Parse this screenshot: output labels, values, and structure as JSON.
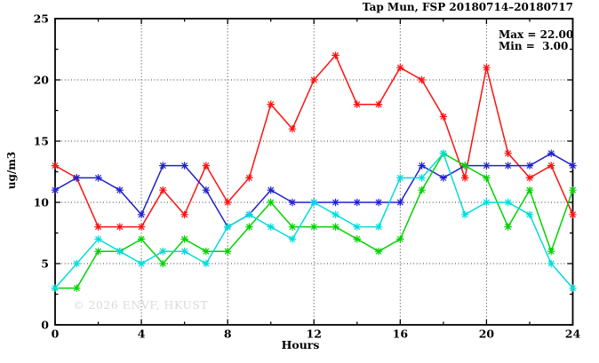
{
  "header": {
    "title": "Tap Mun, FSP 20180714–20180717"
  },
  "legend": {
    "max_label": "Max = 22.00",
    "min_label": "Min =  3.00"
  },
  "watermark": "© 2026 ENVF, HKUST",
  "chart_data": {
    "type": "line",
    "title": "Tap Mun, FSP 20180714–20180717",
    "xlabel": "Hours",
    "ylabel": "ug/m3",
    "xlim": [
      0,
      24
    ],
    "ylim": [
      0,
      25
    ],
    "x_major_ticks": [
      0,
      4,
      8,
      12,
      16,
      20,
      24
    ],
    "x_minor_ticks": [
      2,
      6,
      10,
      14,
      18,
      22
    ],
    "y_major_ticks": [
      0,
      5,
      10,
      15,
      20,
      25
    ],
    "y_minor_ticks": [
      2.5,
      7.5,
      12.5,
      17.5,
      22.5
    ],
    "grid_x": [
      4,
      8,
      12,
      16,
      20
    ],
    "grid_y": [
      5,
      10,
      15,
      20
    ],
    "legend_stats": {
      "max": 22.0,
      "min": 3.0
    },
    "x": [
      0,
      1,
      2,
      3,
      4,
      5,
      6,
      7,
      8,
      9,
      10,
      11,
      12,
      13,
      14,
      15,
      16,
      17,
      18,
      19,
      20,
      21,
      22,
      23,
      24
    ],
    "series": [
      {
        "name": "series-red",
        "color": "#ff1010",
        "values": [
          13,
          12,
          8,
          8,
          8,
          11,
          9,
          13,
          10,
          12,
          18,
          16,
          20,
          22,
          18,
          18,
          21,
          20,
          17,
          12,
          21,
          14,
          12,
          13,
          9
        ]
      },
      {
        "name": "series-blue",
        "color": "#2121cc",
        "values": [
          11,
          12,
          12,
          11,
          9,
          13,
          13,
          11,
          8,
          9,
          11,
          10,
          10,
          10,
          10,
          10,
          10,
          13,
          12,
          13,
          13,
          13,
          13,
          14,
          13
        ]
      },
      {
        "name": "series-green",
        "color": "#00d200",
        "values": [
          3,
          3,
          6,
          6,
          7,
          5,
          7,
          6,
          6,
          8,
          10,
          8,
          8,
          8,
          7,
          6,
          7,
          11,
          14,
          13,
          12,
          8,
          11,
          6,
          11
        ]
      },
      {
        "name": "series-cyan",
        "color": "#00dcdc",
        "values": [
          3,
          5,
          7,
          6,
          5,
          6,
          6,
          5,
          8,
          9,
          8,
          7,
          10,
          9,
          8,
          8,
          12,
          12,
          14,
          9,
          10,
          10,
          9,
          5,
          3
        ]
      }
    ]
  }
}
